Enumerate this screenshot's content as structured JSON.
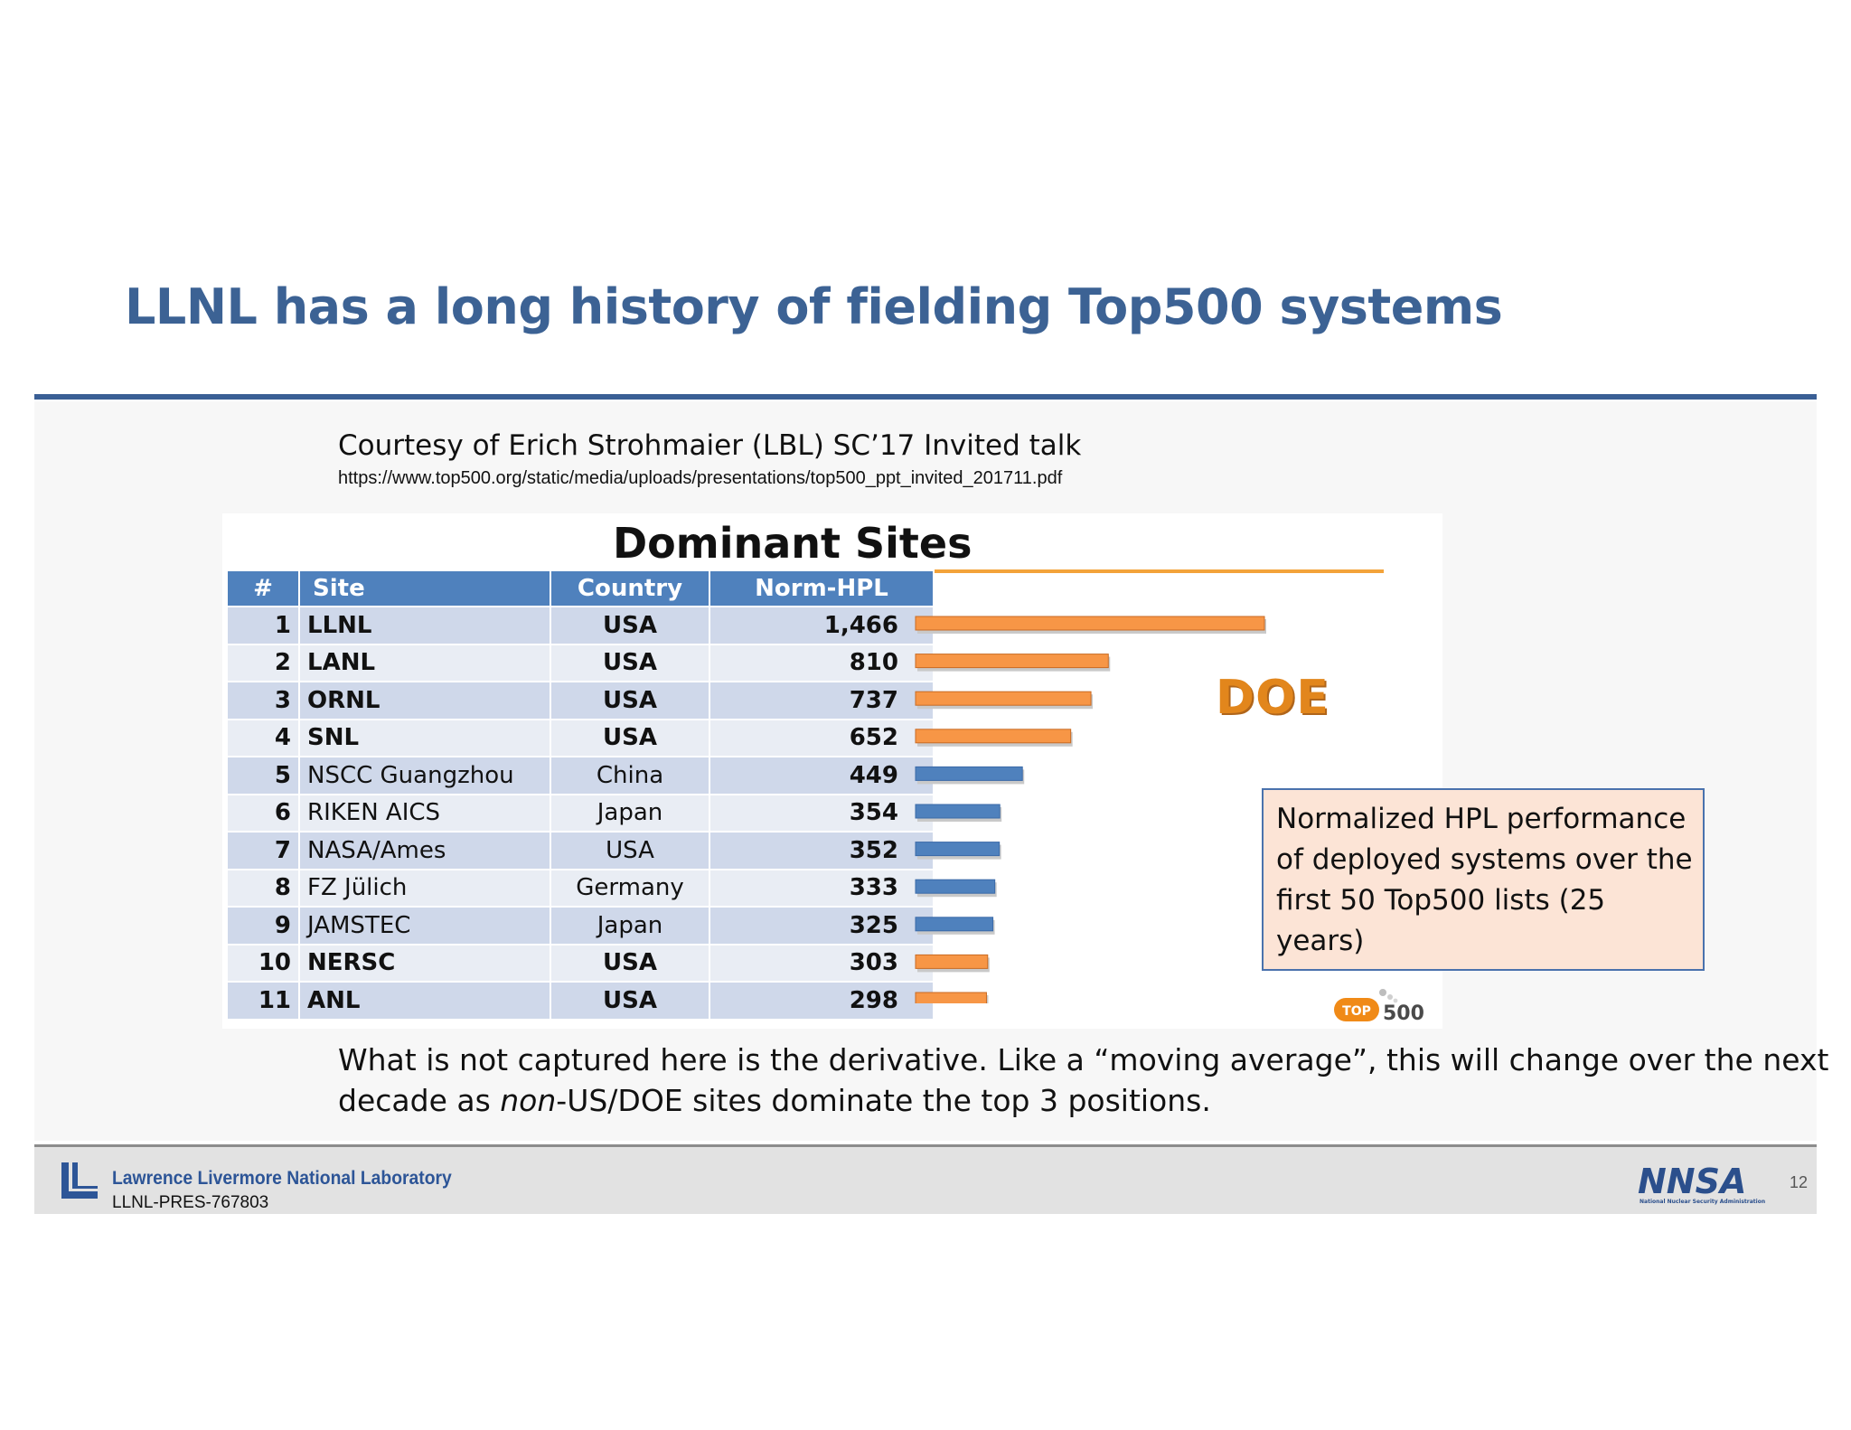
{
  "slide": {
    "title": "LLNL has a long history of fielding Top500 systems",
    "credit": "Courtesy of Erich Strohmaier (LBL) SC’17 Invited talk",
    "url": "https://www.top500.org/static/media/uploads/presentations/top500_ppt_invited_201711.pdf",
    "bottom_pre": "What is not captured here is the derivative. Like a “moving average”, this will change over the next decade as ",
    "bottom_em": "non",
    "bottom_post": "-US/DOE sites dominate the top 3 positions.",
    "footer_lab": "Lawrence Livermore National Laboratory",
    "footer_id": "LLNL-PRES-767803",
    "page_number": "12",
    "nnsa_text": "NNSA",
    "nnsa_sub": "National Nuclear Security Administration"
  },
  "figure": {
    "doe_label": "DOE",
    "note": "Normalized HPL performance of deployed systems over the first 50 Top500 lists (25 years)",
    "top500_logo_top": "TOP",
    "top500_logo_500": "500"
  },
  "chart_data": {
    "type": "table",
    "title": "Dominant Sites",
    "columns": [
      "#",
      "Site",
      "Country",
      "Norm-HPL"
    ],
    "rows": [
      {
        "rank": "1",
        "site": "LLNL",
        "country": "USA",
        "norm_hpl": "1,466",
        "value": 1466,
        "doe": true
      },
      {
        "rank": "2",
        "site": "LANL",
        "country": "USA",
        "norm_hpl": "810",
        "value": 810,
        "doe": true
      },
      {
        "rank": "3",
        "site": "ORNL",
        "country": "USA",
        "norm_hpl": "737",
        "value": 737,
        "doe": true
      },
      {
        "rank": "4",
        "site": "SNL",
        "country": "USA",
        "norm_hpl": "652",
        "value": 652,
        "doe": true
      },
      {
        "rank": "5",
        "site": "NSCC Guangzhou",
        "country": "China",
        "norm_hpl": "449",
        "value": 449,
        "doe": false
      },
      {
        "rank": "6",
        "site": "RIKEN AICS",
        "country": "Japan",
        "norm_hpl": "354",
        "value": 354,
        "doe": false
      },
      {
        "rank": "7",
        "site": "NASA/Ames",
        "country": "USA",
        "norm_hpl": "352",
        "value": 352,
        "doe": false
      },
      {
        "rank": "8",
        "site": "FZ Jülich",
        "country": "Germany",
        "norm_hpl": "333",
        "value": 333,
        "doe": false
      },
      {
        "rank": "9",
        "site": "JAMSTEC",
        "country": "Japan",
        "norm_hpl": "325",
        "value": 325,
        "doe": false
      },
      {
        "rank": "10",
        "site": "NERSC",
        "country": "USA",
        "norm_hpl": "303",
        "value": 303,
        "doe": true
      },
      {
        "rank": "11",
        "site": "ANL",
        "country": "USA",
        "norm_hpl": "298",
        "value": 298,
        "doe": true
      }
    ],
    "series_colors": {
      "doe": "#f79646",
      "other": "#4f81bd"
    }
  }
}
